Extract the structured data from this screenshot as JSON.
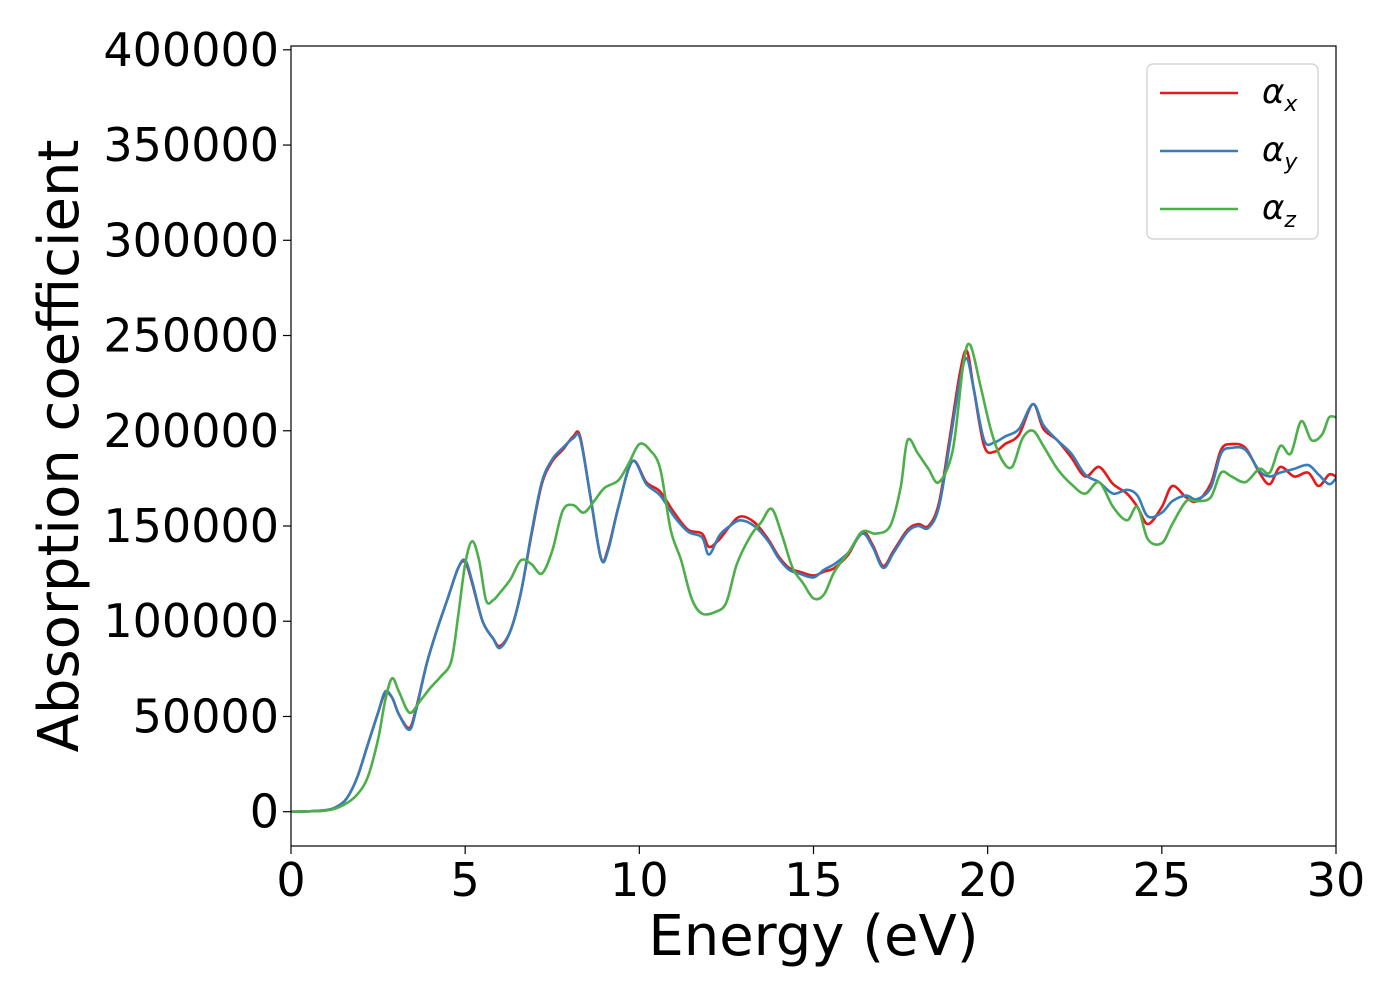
{
  "chart_data": {
    "type": "line",
    "title": "",
    "xlabel": "Energy (eV)",
    "ylabel": "Absorption coefficient",
    "xlim": [
      0,
      30
    ],
    "ylim": [
      -18000,
      402000
    ],
    "xticks": [
      0,
      5,
      10,
      15,
      20,
      25,
      30
    ],
    "yticks": [
      0,
      50000,
      100000,
      150000,
      200000,
      250000,
      300000,
      350000,
      400000
    ],
    "grid": false,
    "legend_position": "top-right",
    "series": [
      {
        "name": "α",
        "subscript": "x",
        "color": "#e41a1c",
        "points": [
          [
            0,
            0
          ],
          [
            0.5,
            200
          ],
          [
            1,
            800
          ],
          [
            1.3,
            2500
          ],
          [
            1.6,
            7000
          ],
          [
            1.9,
            18000
          ],
          [
            2.2,
            35000
          ],
          [
            2.5,
            52000
          ],
          [
            2.7,
            62000
          ],
          [
            2.9,
            60000
          ],
          [
            3.1,
            51000
          ],
          [
            3.4,
            44000
          ],
          [
            3.6,
            55000
          ],
          [
            3.9,
            78000
          ],
          [
            4.2,
            96000
          ],
          [
            4.5,
            112000
          ],
          [
            4.8,
            128000
          ],
          [
            5.0,
            131000
          ],
          [
            5.2,
            120000
          ],
          [
            5.5,
            100000
          ],
          [
            5.8,
            91000
          ],
          [
            6.0,
            87000
          ],
          [
            6.3,
            95000
          ],
          [
            6.6,
            115000
          ],
          [
            6.9,
            145000
          ],
          [
            7.2,
            172000
          ],
          [
            7.5,
            184000
          ],
          [
            7.8,
            190000
          ],
          [
            8.1,
            197000
          ],
          [
            8.3,
            197000
          ],
          [
            8.6,
            165000
          ],
          [
            8.9,
            133000
          ],
          [
            9.1,
            138000
          ],
          [
            9.4,
            160000
          ],
          [
            9.8,
            184000
          ],
          [
            10.2,
            173000
          ],
          [
            10.6,
            168000
          ],
          [
            11.0,
            157000
          ],
          [
            11.4,
            148000
          ],
          [
            11.8,
            146000
          ],
          [
            12.0,
            139000
          ],
          [
            12.3,
            143000
          ],
          [
            12.6,
            150000
          ],
          [
            12.9,
            155000
          ],
          [
            13.3,
            152000
          ],
          [
            13.7,
            143000
          ],
          [
            14.0,
            134000
          ],
          [
            14.3,
            128000
          ],
          [
            14.6,
            126000
          ],
          [
            15.0,
            124000
          ],
          [
            15.3,
            126000
          ],
          [
            15.6,
            128000
          ],
          [
            16.0,
            135000
          ],
          [
            16.4,
            147000
          ],
          [
            16.7,
            140000
          ],
          [
            17.0,
            129000
          ],
          [
            17.3,
            137000
          ],
          [
            17.7,
            148000
          ],
          [
            18.0,
            151000
          ],
          [
            18.3,
            150000
          ],
          [
            18.6,
            162000
          ],
          [
            18.9,
            195000
          ],
          [
            19.2,
            230000
          ],
          [
            19.4,
            242000
          ],
          [
            19.6,
            222000
          ],
          [
            19.9,
            192000
          ],
          [
            20.2,
            189000
          ],
          [
            20.5,
            193000
          ],
          [
            20.9,
            198000
          ],
          [
            21.3,
            214000
          ],
          [
            21.6,
            201000
          ],
          [
            22.0,
            195000
          ],
          [
            22.4,
            186000
          ],
          [
            22.8,
            176000
          ],
          [
            23.2,
            181000
          ],
          [
            23.6,
            172000
          ],
          [
            24.0,
            167000
          ],
          [
            24.3,
            160000
          ],
          [
            24.6,
            151000
          ],
          [
            25.0,
            160000
          ],
          [
            25.3,
            171000
          ],
          [
            25.7,
            165000
          ],
          [
            26.0,
            163000
          ],
          [
            26.4,
            172000
          ],
          [
            26.7,
            190000
          ],
          [
            27.0,
            193000
          ],
          [
            27.4,
            191000
          ],
          [
            27.8,
            178000
          ],
          [
            28.1,
            172000
          ],
          [
            28.4,
            181000
          ],
          [
            28.8,
            176000
          ],
          [
            29.2,
            178000
          ],
          [
            29.5,
            171000
          ],
          [
            29.8,
            177000
          ],
          [
            30,
            176000
          ]
        ]
      },
      {
        "name": "α",
        "subscript": "y",
        "color": "#377eb8",
        "points": [
          [
            0,
            0
          ],
          [
            0.5,
            200
          ],
          [
            1,
            800
          ],
          [
            1.3,
            2500
          ],
          [
            1.6,
            7000
          ],
          [
            1.9,
            18000
          ],
          [
            2.2,
            35000
          ],
          [
            2.5,
            52000
          ],
          [
            2.7,
            63000
          ],
          [
            2.9,
            60000
          ],
          [
            3.1,
            51000
          ],
          [
            3.4,
            43000
          ],
          [
            3.6,
            54000
          ],
          [
            3.9,
            78000
          ],
          [
            4.2,
            96000
          ],
          [
            4.5,
            112000
          ],
          [
            4.8,
            128000
          ],
          [
            5.0,
            132000
          ],
          [
            5.2,
            121000
          ],
          [
            5.5,
            100000
          ],
          [
            5.8,
            91000
          ],
          [
            6.0,
            86000
          ],
          [
            6.3,
            95000
          ],
          [
            6.6,
            115000
          ],
          [
            6.9,
            146000
          ],
          [
            7.2,
            173000
          ],
          [
            7.5,
            185000
          ],
          [
            7.8,
            191000
          ],
          [
            8.1,
            196000
          ],
          [
            8.3,
            196000
          ],
          [
            8.6,
            165000
          ],
          [
            8.9,
            133000
          ],
          [
            9.1,
            137000
          ],
          [
            9.4,
            160000
          ],
          [
            9.8,
            184000
          ],
          [
            10.2,
            172000
          ],
          [
            10.6,
            166000
          ],
          [
            11.0,
            155000
          ],
          [
            11.4,
            147000
          ],
          [
            11.8,
            144000
          ],
          [
            12.0,
            135000
          ],
          [
            12.3,
            145000
          ],
          [
            12.6,
            150000
          ],
          [
            12.9,
            153000
          ],
          [
            13.3,
            150000
          ],
          [
            13.7,
            142000
          ],
          [
            14.0,
            133000
          ],
          [
            14.3,
            127000
          ],
          [
            14.6,
            125000
          ],
          [
            15.0,
            123000
          ],
          [
            15.3,
            127000
          ],
          [
            15.6,
            130000
          ],
          [
            16.0,
            136000
          ],
          [
            16.4,
            146000
          ],
          [
            16.7,
            139000
          ],
          [
            17.0,
            128000
          ],
          [
            17.3,
            136000
          ],
          [
            17.7,
            147000
          ],
          [
            18.0,
            150000
          ],
          [
            18.3,
            149000
          ],
          [
            18.6,
            160000
          ],
          [
            18.9,
            192000
          ],
          [
            19.2,
            226000
          ],
          [
            19.4,
            238000
          ],
          [
            19.6,
            222000
          ],
          [
            19.9,
            195000
          ],
          [
            20.2,
            194000
          ],
          [
            20.5,
            197000
          ],
          [
            20.9,
            201000
          ],
          [
            21.3,
            214000
          ],
          [
            21.6,
            203000
          ],
          [
            22.0,
            195000
          ],
          [
            22.4,
            188000
          ],
          [
            22.8,
            177000
          ],
          [
            23.2,
            173000
          ],
          [
            23.6,
            167000
          ],
          [
            24.0,
            169000
          ],
          [
            24.3,
            166000
          ],
          [
            24.6,
            155000
          ],
          [
            25.0,
            157000
          ],
          [
            25.3,
            163000
          ],
          [
            25.7,
            166000
          ],
          [
            26.0,
            164000
          ],
          [
            26.4,
            170000
          ],
          [
            26.7,
            188000
          ],
          [
            27.0,
            191000
          ],
          [
            27.4,
            190000
          ],
          [
            27.8,
            179000
          ],
          [
            28.1,
            176000
          ],
          [
            28.4,
            178000
          ],
          [
            28.8,
            180000
          ],
          [
            29.2,
            182000
          ],
          [
            29.5,
            177000
          ],
          [
            29.8,
            172000
          ],
          [
            30,
            175000
          ]
        ]
      },
      {
        "name": "α",
        "subscript": "z",
        "color": "#4daf4a",
        "points": [
          [
            0,
            0
          ],
          [
            0.5,
            200
          ],
          [
            1,
            600
          ],
          [
            1.3,
            1800
          ],
          [
            1.6,
            4500
          ],
          [
            1.9,
            9000
          ],
          [
            2.2,
            18000
          ],
          [
            2.5,
            38000
          ],
          [
            2.7,
            58000
          ],
          [
            2.9,
            70000
          ],
          [
            3.1,
            63000
          ],
          [
            3.4,
            52000
          ],
          [
            3.7,
            58000
          ],
          [
            4.0,
            65000
          ],
          [
            4.3,
            71000
          ],
          [
            4.6,
            79000
          ],
          [
            4.8,
            103000
          ],
          [
            5.0,
            130000
          ],
          [
            5.2,
            142000
          ],
          [
            5.4,
            132000
          ],
          [
            5.6,
            111000
          ],
          [
            5.8,
            111000
          ],
          [
            6.0,
            115000
          ],
          [
            6.3,
            122000
          ],
          [
            6.6,
            132000
          ],
          [
            6.9,
            130000
          ],
          [
            7.2,
            125000
          ],
          [
            7.5,
            137000
          ],
          [
            7.8,
            158000
          ],
          [
            8.1,
            161000
          ],
          [
            8.4,
            157000
          ],
          [
            8.7,
            163000
          ],
          [
            9.0,
            170000
          ],
          [
            9.4,
            174000
          ],
          [
            9.7,
            183000
          ],
          [
            10.0,
            193000
          ],
          [
            10.3,
            190000
          ],
          [
            10.6,
            180000
          ],
          [
            10.9,
            148000
          ],
          [
            11.2,
            132000
          ],
          [
            11.5,
            112000
          ],
          [
            11.8,
            104000
          ],
          [
            12.2,
            105000
          ],
          [
            12.5,
            110000
          ],
          [
            12.8,
            130000
          ],
          [
            13.2,
            145000
          ],
          [
            13.5,
            152000
          ],
          [
            13.8,
            159000
          ],
          [
            14.1,
            145000
          ],
          [
            14.4,
            128000
          ],
          [
            14.7,
            120000
          ],
          [
            15.0,
            112000
          ],
          [
            15.3,
            114000
          ],
          [
            15.6,
            126000
          ],
          [
            16.0,
            136000
          ],
          [
            16.4,
            147000
          ],
          [
            16.8,
            146000
          ],
          [
            17.2,
            150000
          ],
          [
            17.5,
            170000
          ],
          [
            17.7,
            195000
          ],
          [
            18.0,
            188000
          ],
          [
            18.3,
            180000
          ],
          [
            18.6,
            173000
          ],
          [
            19.0,
            190000
          ],
          [
            19.3,
            235000
          ],
          [
            19.5,
            245000
          ],
          [
            19.8,
            223000
          ],
          [
            20.1,
            200000
          ],
          [
            20.4,
            185000
          ],
          [
            20.7,
            181000
          ],
          [
            21.0,
            196000
          ],
          [
            21.3,
            200000
          ],
          [
            21.6,
            192000
          ],
          [
            22.0,
            180000
          ],
          [
            22.4,
            172000
          ],
          [
            22.8,
            167000
          ],
          [
            23.2,
            173000
          ],
          [
            23.6,
            160000
          ],
          [
            24.0,
            153000
          ],
          [
            24.3,
            160000
          ],
          [
            24.6,
            143000
          ],
          [
            25.0,
            141000
          ],
          [
            25.3,
            151000
          ],
          [
            25.7,
            163000
          ],
          [
            26.0,
            163000
          ],
          [
            26.4,
            165000
          ],
          [
            26.7,
            178000
          ],
          [
            27.0,
            176000
          ],
          [
            27.4,
            173000
          ],
          [
            27.8,
            180000
          ],
          [
            28.1,
            178000
          ],
          [
            28.4,
            192000
          ],
          [
            28.7,
            188000
          ],
          [
            29.0,
            205000
          ],
          [
            29.3,
            195000
          ],
          [
            29.6,
            198000
          ],
          [
            29.8,
            207000
          ],
          [
            30,
            207000
          ]
        ]
      }
    ]
  }
}
